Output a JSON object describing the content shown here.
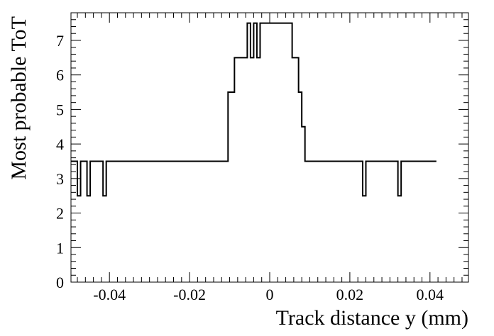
{
  "chart_data": {
    "type": "step",
    "xlabel": "Track distance y (mm)",
    "ylabel": "Most probable ToT",
    "xlim": [
      -0.0496,
      0.0496
    ],
    "ylim": [
      0,
      7.8
    ],
    "x_ticks": [
      -0.04,
      -0.02,
      0,
      0.02,
      0.04
    ],
    "x_tick_labels": [
      "-0.04",
      "-0.02",
      "0",
      "0.02",
      "0.04"
    ],
    "y_ticks": [
      0,
      1,
      2,
      3,
      4,
      5,
      6,
      7
    ],
    "y_tick_labels": [
      "0",
      "1",
      "2",
      "3",
      "4",
      "5",
      "6",
      "7"
    ],
    "bin_width": 0.0008,
    "series": [
      {
        "values": [
          3.5,
          3.5,
          2.5,
          3.5,
          3.5,
          2.5,
          3.5,
          3.5,
          3.5,
          3.5,
          2.5,
          3.5,
          3.5,
          3.5,
          3.5,
          3.5,
          3.5,
          3.5,
          3.5,
          3.5,
          3.5,
          3.5,
          3.5,
          3.5,
          3.5,
          3.5,
          3.5,
          3.5,
          3.5,
          3.5,
          3.5,
          3.5,
          3.5,
          3.5,
          3.5,
          3.5,
          3.5,
          3.5,
          3.5,
          3.5,
          3.5,
          3.5,
          3.5,
          3.5,
          3.5,
          3.5,
          3.5,
          3.5,
          3.5,
          5.5,
          5.5,
          6.5,
          6.5,
          6.5,
          6.5,
          7.5,
          6.5,
          7.5,
          6.5,
          7.5,
          7.5,
          7.5,
          7.5,
          7.5,
          7.5,
          7.5,
          7.5,
          7.5,
          7.5,
          6.5,
          6.5,
          5.5,
          4.5,
          3.5,
          3.5,
          3.5,
          3.5,
          3.5,
          3.5,
          3.5,
          3.5,
          3.5,
          3.5,
          3.5,
          3.5,
          3.5,
          3.5,
          3.5,
          3.5,
          3.5,
          3.5,
          2.5,
          3.5,
          3.5,
          3.5,
          3.5,
          3.5,
          3.5,
          3.5,
          3.5,
          3.5,
          3.5,
          2.5,
          3.5,
          3.5,
          3.5,
          3.5,
          3.5,
          3.5,
          3.5,
          3.5,
          3.5,
          3.5,
          3.5
        ]
      }
    ],
    "grid": false,
    "legend": "none"
  }
}
